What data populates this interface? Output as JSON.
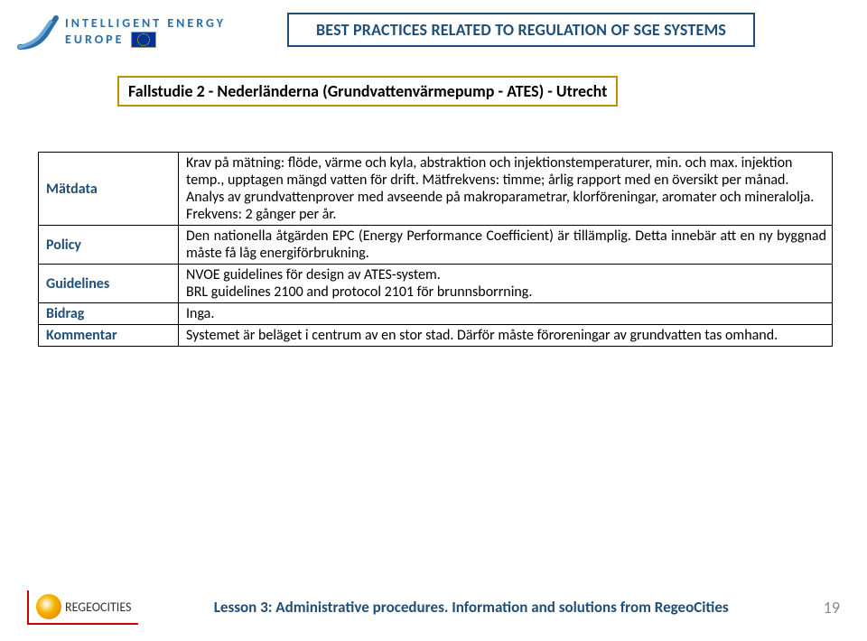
{
  "header": {
    "logo_line1": "INTELLIGENT ENERGY",
    "logo_line2": "EUROPE",
    "title": "BEST PRACTICES RELATED TO REGULATION OF SGE SYSTEMS"
  },
  "subtitle": "Fallstudie 2 - Nederländerna (Grundvattenvärmepump - ATES) - Utrecht",
  "table": {
    "rows": [
      {
        "label": "Mätdata",
        "value": "Krav på mätning: flöde, värme och kyla, abstraktion och injektionstemperaturer, min. och max. injektion temp., upptagen mängd vatten för drift. Mätfrekvens: timme; årlig rapport med en översikt per månad.\nAnalys av grundvattenprover med avseende på makroparametrar, klorföreningar, aromater och mineralolja. Frekvens: 2 gånger per år."
      },
      {
        "label": "Policy",
        "value": "Den nationella åtgärden EPC (Energy Performance Coefficient) är tillämplig. Detta innebär att en ny byggnad måste få låg energiförbrukning.",
        "justify": true
      },
      {
        "label": "Guidelines",
        "value": "NVOE guidelines för design av ATES-system.\nBRL guidelines 2100 and protocol 2101 för brunnsborrning."
      },
      {
        "label": "Bidrag",
        "value": "Inga."
      },
      {
        "label": "Kommentar",
        "value": "Systemet är beläget i centrum av en stor stad. Därför måste föroreningar av grundvatten tas omhand."
      }
    ]
  },
  "footer": {
    "regeo_text": "REGEOCITIES",
    "lesson": "Lesson 3: Administrative procedures. Information and solutions from RegeoCities",
    "page": "19"
  },
  "colors": {
    "title_border": "#1f4e79",
    "subtitle_border": "#c09000",
    "label_text": "#1f4e79",
    "footer_text": "#1f4e79",
    "page_num": "#8a8a8a"
  }
}
